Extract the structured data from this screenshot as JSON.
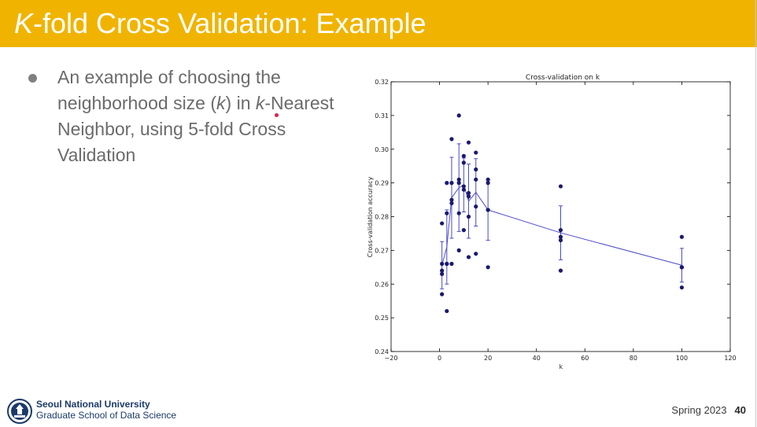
{
  "slide": {
    "title_italic": "K",
    "title_rest": "-fold Cross Validation: Example",
    "bullet": {
      "part1": "An example of choosing the neighborhood size (",
      "k1": "k",
      "part2": ") in ",
      "k2": "k",
      "part3": "-Nearest Neighbor, using 5-fold Cross Validation"
    }
  },
  "footer": {
    "university": "Seoul National University",
    "school": "Graduate School of Data Science",
    "term": "Spring 2023",
    "page": "40"
  },
  "colors": {
    "accent": "#f0b400",
    "points": "#1a1a6e",
    "line": "#4a4ac8"
  },
  "chart_data": {
    "type": "scatter",
    "title": "Cross-validation on k",
    "xlabel": "k",
    "ylabel": "Cross-validation accuracy",
    "xlim": [
      -20,
      120
    ],
    "ylim": [
      0.24,
      0.32
    ],
    "xticks": [
      -20,
      0,
      20,
      40,
      60,
      80,
      100,
      120
    ],
    "xtick_labels": [
      "−20",
      "0",
      "20",
      "40",
      "60",
      "80",
      "100",
      "120"
    ],
    "yticks": [
      0.24,
      0.25,
      0.26,
      0.27,
      0.28,
      0.29,
      0.3,
      0.31,
      0.32
    ],
    "ytick_labels": [
      "0.24",
      "0.25",
      "0.26",
      "0.27",
      "0.28",
      "0.29",
      "0.30",
      "0.31",
      "0.32"
    ],
    "points": [
      [
        1,
        0.278
      ],
      [
        1,
        0.266
      ],
      [
        1,
        0.264
      ],
      [
        1,
        0.263
      ],
      [
        1,
        0.257
      ],
      [
        3,
        0.29
      ],
      [
        3,
        0.281
      ],
      [
        3,
        0.266
      ],
      [
        3,
        0.266
      ],
      [
        3,
        0.252
      ],
      [
        5,
        0.303
      ],
      [
        5,
        0.29
      ],
      [
        5,
        0.285
      ],
      [
        5,
        0.284
      ],
      [
        5,
        0.266
      ],
      [
        8,
        0.31
      ],
      [
        8,
        0.291
      ],
      [
        8,
        0.29
      ],
      [
        8,
        0.281
      ],
      [
        8,
        0.27
      ],
      [
        10,
        0.298
      ],
      [
        10,
        0.296
      ],
      [
        10,
        0.289
      ],
      [
        10,
        0.288
      ],
      [
        10,
        0.276
      ],
      [
        12,
        0.302
      ],
      [
        12,
        0.287
      ],
      [
        12,
        0.286
      ],
      [
        12,
        0.28
      ],
      [
        12,
        0.268
      ],
      [
        15,
        0.299
      ],
      [
        15,
        0.294
      ],
      [
        15,
        0.291
      ],
      [
        15,
        0.283
      ],
      [
        15,
        0.269
      ],
      [
        20,
        0.291
      ],
      [
        20,
        0.29
      ],
      [
        20,
        0.282
      ],
      [
        20,
        0.282
      ],
      [
        20,
        0.265
      ],
      [
        50,
        0.289
      ],
      [
        50,
        0.276
      ],
      [
        50,
        0.274
      ],
      [
        50,
        0.273
      ],
      [
        50,
        0.264
      ],
      [
        100,
        0.274
      ],
      [
        100,
        0.265
      ],
      [
        100,
        0.265
      ],
      [
        100,
        0.265
      ],
      [
        100,
        0.259
      ]
    ],
    "mean_series": {
      "x": [
        1,
        3,
        5,
        8,
        10,
        12,
        15,
        20,
        50,
        100
      ],
      "y": [
        0.2656,
        0.271,
        0.2856,
        0.2886,
        0.2894,
        0.2846,
        0.2872,
        0.282,
        0.2752,
        0.2656
      ],
      "err": [
        0.007,
        0.011,
        0.012,
        0.013,
        0.008,
        0.011,
        0.01,
        0.009,
        0.008,
        0.005
      ]
    }
  }
}
